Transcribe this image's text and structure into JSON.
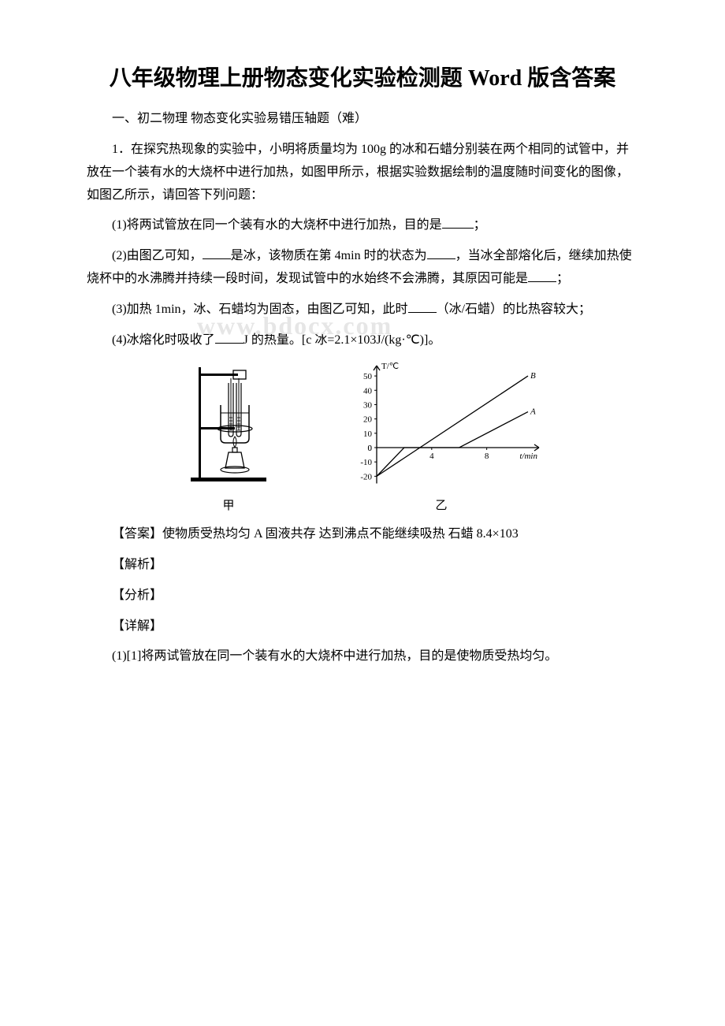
{
  "title": "八年级物理上册物态变化实验检测题 Word 版含答案",
  "section_heading": "一、初二物理 物态变化实验易错压轴题（难）",
  "q1_intro": "1．在探究热现象的实验中，小明将质量均为 100g 的冰和石蜡分别装在两个相同的试管中，并放在一个装有水的大烧杯中进行加热，如图甲所示，根据实验数据绘制的温度随时间变化的图像，如图乙所示，请回答下列问题：",
  "q1_1_a": "(1)将两试管放在同一个装有水的大烧杯中进行加热，目的是",
  "q1_1_b": "；",
  "q1_2_a": "(2)由图乙可知，",
  "q1_2_b": "是冰，该物质在第 4min 时的状态为",
  "q1_2_c": "，当冰全部熔化后，继续加热使烧杯中的水沸腾并持续一段时间，发现试管中的水始终不会沸腾，其原因可能是",
  "q1_2_d": "；",
  "q1_3_a": "(3)加热 1min，冰、石蜡均为固态，由图乙可知，此时",
  "q1_3_b": "（冰/石蜡）的比热容较大；",
  "q1_4_a": "(4)冰熔化时吸收了",
  "q1_4_b": "J 的热量。[c 冰=2.1×103J/(kg·℃)]。",
  "fig_label_1": "甲",
  "fig_label_2": "乙",
  "answer": "【答案】使物质受热均匀 A 固液共存 达到沸点不能继续吸热 石蜡 8.4×103",
  "analysis": "【解析】",
  "fenxi": "【分析】",
  "xiangjie": "【详解】",
  "detail_1": "(1)[1]将两试管放在同一个装有水的大烧杯中进行加热，目的是使物质受热均匀。",
  "watermark": "www.bdocx.com",
  "chart": {
    "type": "line",
    "x_label": "t/min",
    "y_label": "T/℃",
    "x_range": [
      0,
      11
    ],
    "y_range": [
      -25,
      55
    ],
    "y_ticks": [
      -20,
      -10,
      0,
      10,
      20,
      30,
      40,
      50
    ],
    "x_ticks": [
      4,
      8
    ],
    "series_A": {
      "label": "A",
      "points": [
        [
          0,
          -20
        ],
        [
          2,
          0
        ],
        [
          6,
          0
        ],
        [
          11,
          25
        ]
      ],
      "color": "#000000"
    },
    "series_B": {
      "label": "B",
      "points": [
        [
          0,
          -20
        ],
        [
          11,
          50
        ]
      ],
      "color": "#000000"
    },
    "line_width": 1.3,
    "axis_color": "#000000",
    "font_size": 11
  },
  "apparatus": {
    "stroke": "#000000",
    "fill": "#ffffff",
    "width": 120,
    "height": 160
  }
}
